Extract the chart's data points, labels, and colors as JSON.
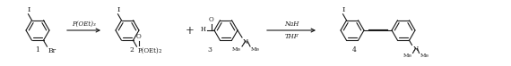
{
  "bg_color": "#ffffff",
  "fig_width": 5.7,
  "fig_height": 0.74,
  "dpi": 100,
  "arrow1_label": "P(OEt)₃",
  "arrow2_label_top": "NaH",
  "arrow2_label_bot": "THF",
  "compound1_label": "1",
  "compound2_label": "2",
  "compound3_label": "3",
  "compound4_label": "4",
  "plus_label": "+",
  "line_color": "#1a1a1a",
  "text_color": "#1a1a1a",
  "font_size": 5.5,
  "small_font_size": 4.5
}
